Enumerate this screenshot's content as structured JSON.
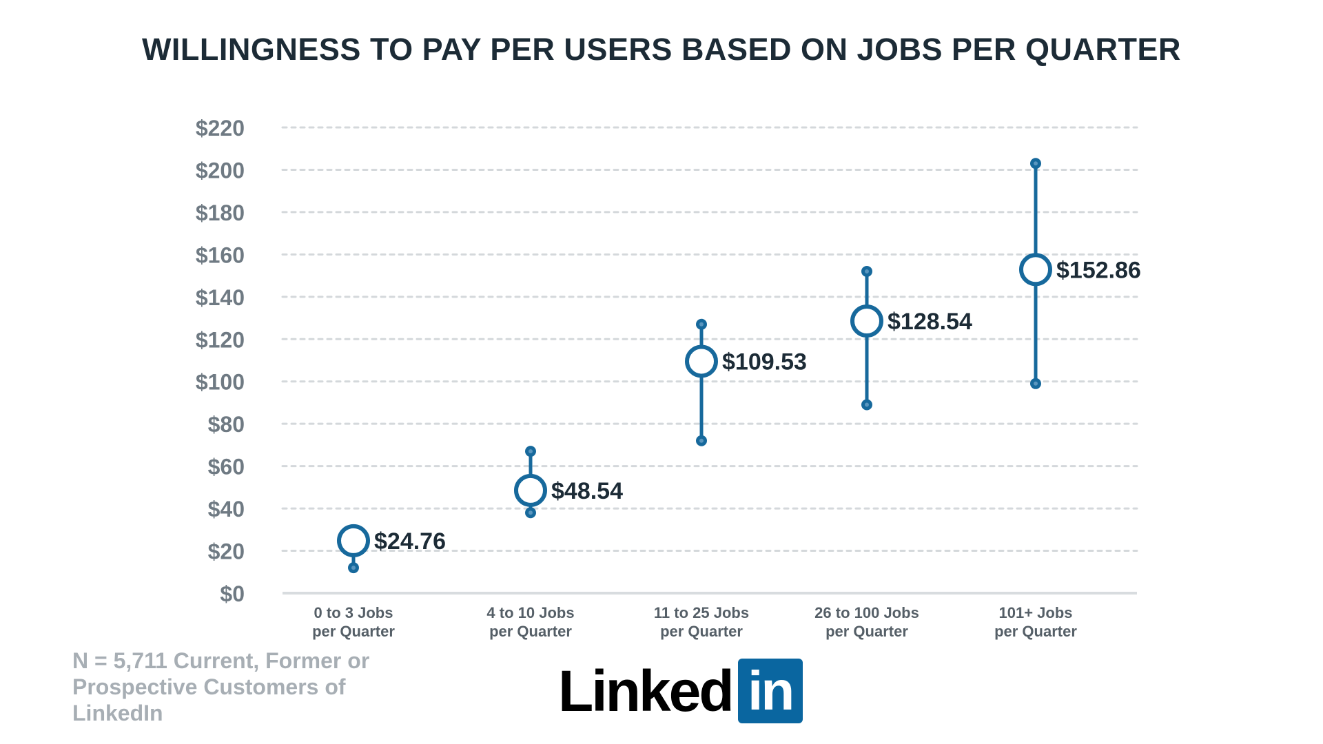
{
  "chart_data": {
    "type": "range",
    "title": "WILLINGNESS TO PAY PER USERS BASED ON JOBS PER QUARTER",
    "xlabel": "",
    "ylabel": "",
    "ylim": [
      0,
      220
    ],
    "y_ticks": [
      0,
      20,
      40,
      60,
      80,
      100,
      120,
      140,
      160,
      180,
      200,
      220
    ],
    "y_tick_labels": [
      "$0",
      "$20",
      "$40",
      "$60",
      "$80",
      "$100",
      "$120",
      "$140",
      "$160",
      "$180",
      "$200",
      "$220"
    ],
    "categories": [
      [
        "0 to 3 Jobs",
        "per Quarter"
      ],
      [
        "4 to 10 Jobs",
        "per Quarter"
      ],
      [
        "11 to 25 Jobs",
        "per Quarter"
      ],
      [
        "26 to 100 Jobs",
        "per Quarter"
      ],
      [
        "101+ Jobs",
        "per Quarter"
      ]
    ],
    "values": [
      24.76,
      48.54,
      109.53,
      128.54,
      152.86
    ],
    "value_labels": [
      "$24.76",
      "$48.54",
      "$109.53",
      "$128.54",
      "$152.86"
    ],
    "low": [
      12,
      38,
      72,
      89,
      99
    ],
    "high": [
      24.76,
      67,
      127,
      152,
      203
    ],
    "grid": true,
    "grid_style": "dotted"
  },
  "footnote": "N = 5,711 Current, Former or Prospective Customers of LinkedIn",
  "logo": {
    "text": "Linked",
    "box_text": "in",
    "box_color": "#0a66a0"
  },
  "colors": {
    "series": "#17699c",
    "title": "#1c2b36",
    "axis_text": "#6f7a83",
    "category_text": "#555f67",
    "value_text": "#1c2b36",
    "grid": "#d4d8db",
    "baseline": "#d8dcdf",
    "footnote": "#a7aeb4"
  }
}
